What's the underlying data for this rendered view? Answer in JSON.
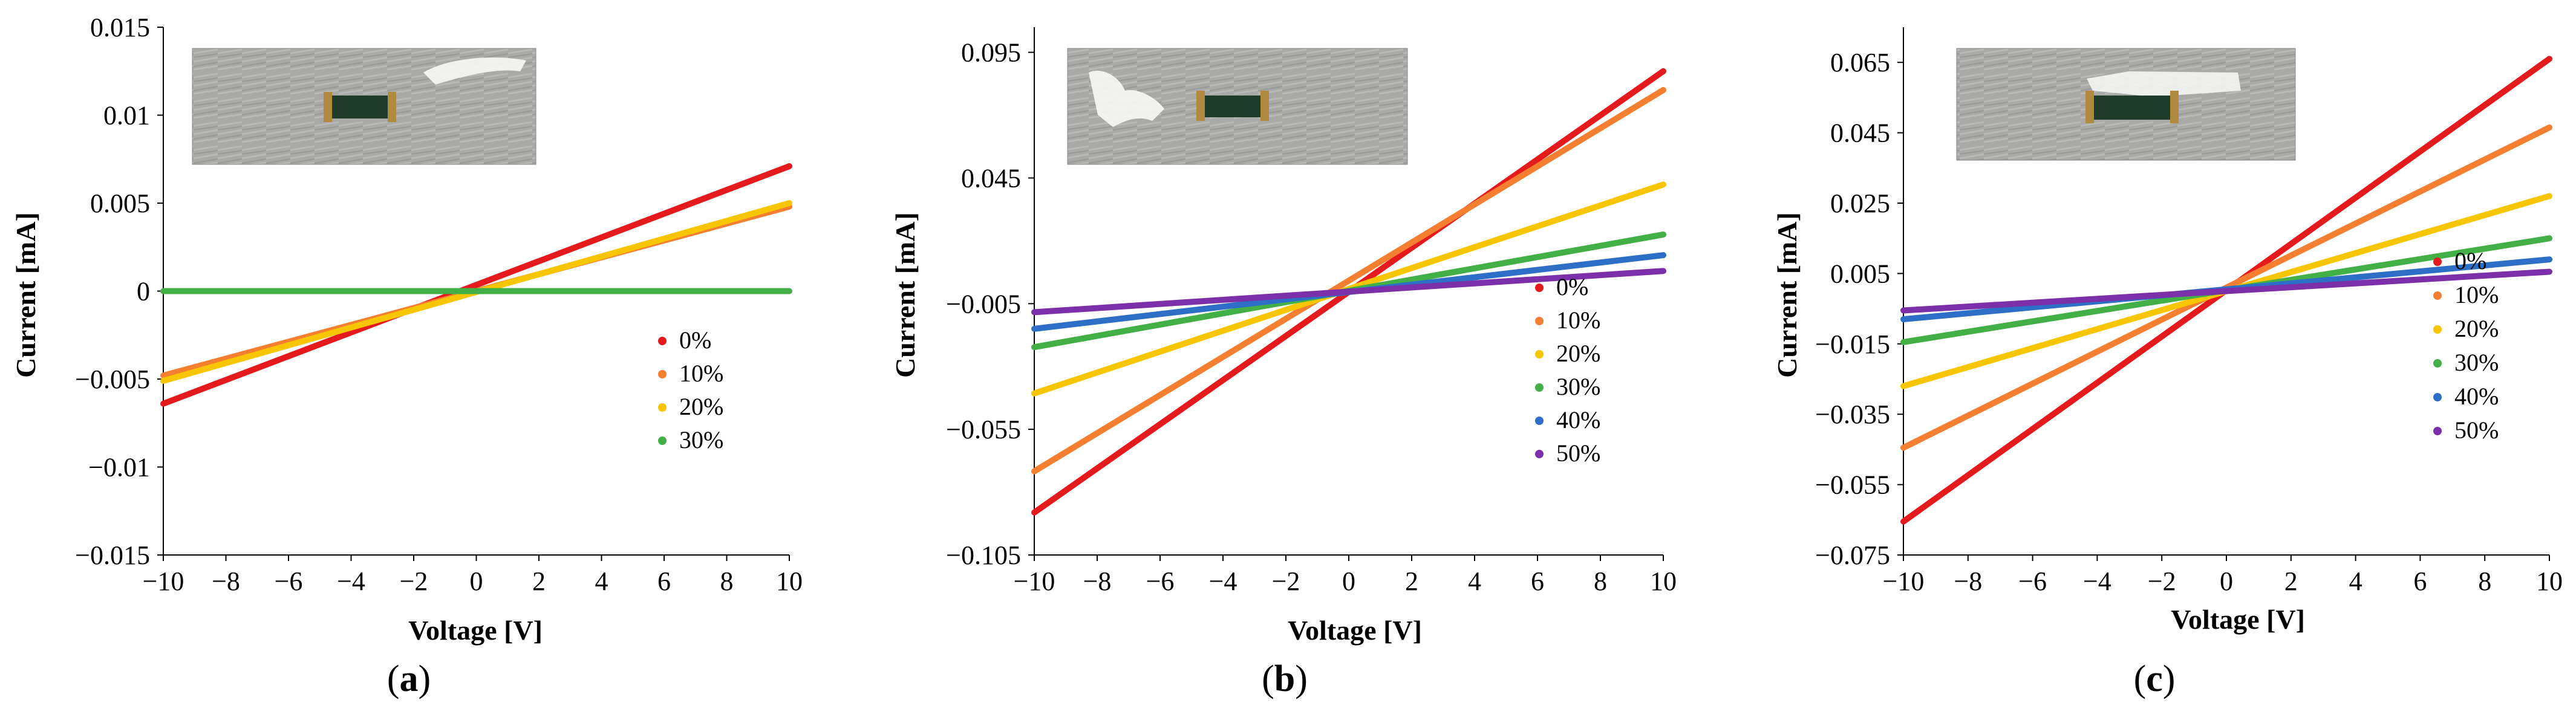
{
  "chart_data": [
    {
      "type": "scatter",
      "panel_label": "a",
      "xlabel": "Voltage [V]",
      "ylabel": "Current [mA]",
      "xlim": [
        -10,
        10
      ],
      "ylim": [
        -0.015,
        0.015
      ],
      "x_ticks": [
        -10,
        -8,
        -6,
        -4,
        -2,
        0,
        2,
        4,
        6,
        8,
        10
      ],
      "x_tick_labels": [
        "−10",
        "−8",
        "−6",
        "−4",
        "−2",
        "0",
        "2",
        "4",
        "6",
        "8",
        "10"
      ],
      "y_ticks": [
        -0.015,
        -0.01,
        -0.005,
        0,
        0.005,
        0.01,
        0.015
      ],
      "y_tick_labels": [
        "−0.015",
        "−0.01",
        "−0.005",
        "0",
        "0.005",
        "0.01",
        "0.015"
      ],
      "legend_position": "right",
      "series": [
        {
          "name": "0%",
          "color": "#e41a1c",
          "x": [
            -10,
            10
          ],
          "y": [
            -0.0064,
            0.0071
          ]
        },
        {
          "name": "10%",
          "color": "#f47f30",
          "x": [
            -10,
            10
          ],
          "y": [
            -0.0048,
            0.0048
          ]
        },
        {
          "name": "20%",
          "color": "#f7c600",
          "x": [
            -10,
            10
          ],
          "y": [
            -0.0051,
            0.005
          ]
        },
        {
          "name": "30%",
          "color": "#43b047",
          "x": [
            -10,
            10
          ],
          "y": [
            0.0,
            0.0
          ]
        }
      ]
    },
    {
      "type": "scatter",
      "panel_label": "b",
      "xlabel": "Voltage [V]",
      "ylabel": "Current [mA]",
      "xlim": [
        -10,
        10
      ],
      "ylim": [
        -0.105,
        0.105
      ],
      "x_ticks": [
        -10,
        -8,
        -6,
        -4,
        -2,
        0,
        2,
        4,
        6,
        8,
        10
      ],
      "x_tick_labels": [
        "−10",
        "−8",
        "−6",
        "−4",
        "−2",
        "0",
        "2",
        "4",
        "6",
        "8",
        "10"
      ],
      "y_ticks": [
        -0.105,
        -0.055,
        -0.005,
        0.045,
        0.095
      ],
      "y_tick_labels": [
        "−0.105",
        "−0.055",
        "−0.005",
        "0.045",
        "0.095"
      ],
      "legend_position": "right",
      "series": [
        {
          "name": "0%",
          "color": "#e41a1c",
          "x": [
            -10,
            10
          ],
          "y": [
            -0.0881,
            0.0875
          ]
        },
        {
          "name": "10%",
          "color": "#f47f30",
          "x": [
            -10,
            10
          ],
          "y": [
            -0.0717,
            0.08
          ]
        },
        {
          "name": "20%",
          "color": "#f7c600",
          "x": [
            -10,
            10
          ],
          "y": [
            -0.0407,
            0.0424
          ]
        },
        {
          "name": "30%",
          "color": "#43b047",
          "x": [
            -10,
            10
          ],
          "y": [
            -0.0223,
            0.0225
          ]
        },
        {
          "name": "40%",
          "color": "#2d6fc6",
          "x": [
            -10,
            10
          ],
          "y": [
            -0.015,
            0.0143
          ]
        },
        {
          "name": "50%",
          "color": "#7b2fa8",
          "x": [
            -10,
            10
          ],
          "y": [
            -0.0084,
            0.008
          ]
        }
      ]
    },
    {
      "type": "scatter",
      "panel_label": "c",
      "xlabel": "Voltage [V]",
      "ylabel": "Current [mA]",
      "xlim": [
        -10,
        10
      ],
      "ylim": [
        -0.075,
        0.075
      ],
      "x_ticks": [
        -10,
        -8,
        -6,
        -4,
        -2,
        0,
        2,
        4,
        6,
        8,
        10
      ],
      "x_tick_labels": [
        "−10",
        "−8",
        "−6",
        "−4",
        "−2",
        "0",
        "2",
        "4",
        "6",
        "8",
        "10"
      ],
      "y_ticks": [
        -0.075,
        -0.055,
        -0.035,
        -0.015,
        0.005,
        0.025,
        0.045,
        0.065
      ],
      "y_tick_labels": [
        "−0.075",
        "−0.055",
        "−0.035",
        "−0.015",
        "0.005",
        "0.025",
        "0.045",
        "0.065"
      ],
      "legend_position": "right",
      "series": [
        {
          "name": "0%",
          "color": "#e41a1c",
          "x": [
            -10,
            10
          ],
          "y": [
            -0.0655,
            0.066
          ]
        },
        {
          "name": "10%",
          "color": "#f47f30",
          "x": [
            -10,
            10
          ],
          "y": [
            -0.0445,
            0.0465
          ]
        },
        {
          "name": "20%",
          "color": "#f7c600",
          "x": [
            -10,
            10
          ],
          "y": [
            -0.027,
            0.027
          ]
        },
        {
          "name": "30%",
          "color": "#43b047",
          "x": [
            -10,
            10
          ],
          "y": [
            -0.0145,
            0.015
          ]
        },
        {
          "name": "40%",
          "color": "#2d6fc6",
          "x": [
            -10,
            10
          ],
          "y": [
            -0.008,
            0.009
          ]
        },
        {
          "name": "50%",
          "color": "#7b2fa8",
          "x": [
            -10,
            10
          ],
          "y": [
            -0.0055,
            0.0055
          ]
        }
      ]
    }
  ]
}
